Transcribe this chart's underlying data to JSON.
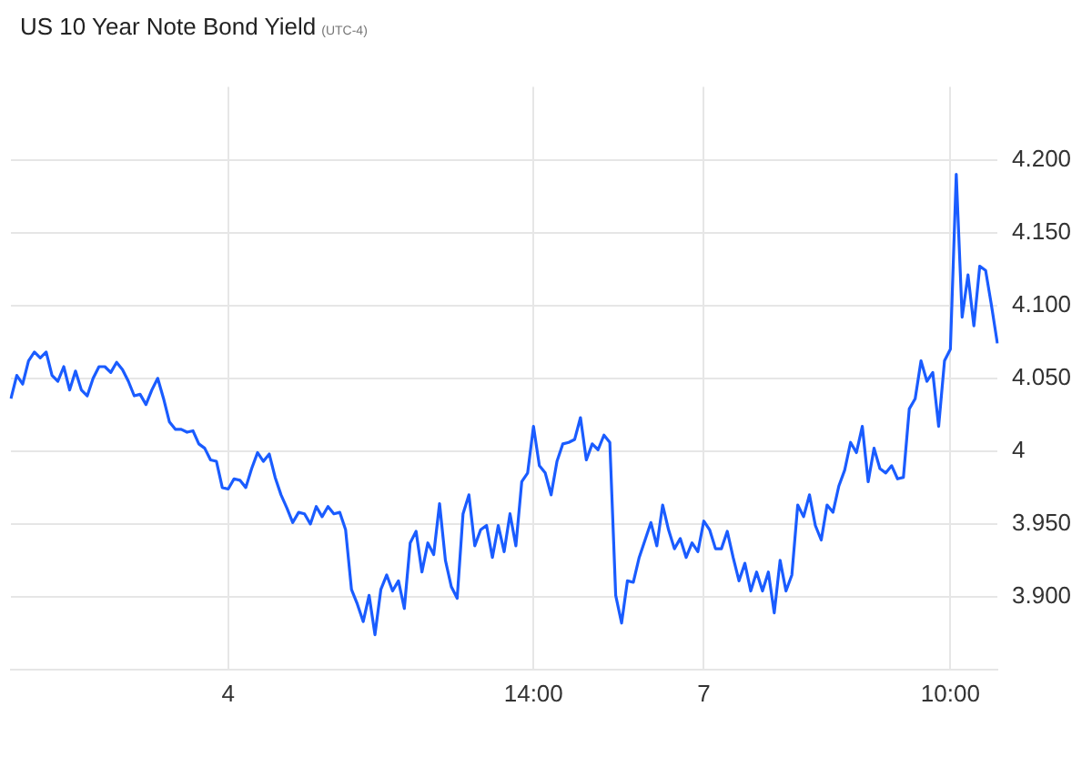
{
  "chart_data": {
    "type": "line",
    "title": "US 10 Year Note Bond Yield",
    "subtitle": "(UTC-4)",
    "categories": [
      null,
      null,
      null,
      null,
      null,
      null,
      null,
      null,
      null,
      null,
      null,
      null,
      null,
      null,
      null,
      null,
      null,
      null,
      null,
      null,
      null,
      null,
      null,
      null,
      null,
      null,
      null,
      null,
      null,
      null,
      null,
      null,
      null,
      null,
      null,
      null,
      null,
      "4",
      null,
      null,
      null,
      null,
      null,
      null,
      null,
      null,
      null,
      null,
      null,
      null,
      null,
      null,
      null,
      null,
      null,
      null,
      null,
      null,
      null,
      null,
      null,
      null,
      null,
      null,
      null,
      null,
      null,
      null,
      null,
      null,
      null,
      null,
      null,
      null,
      null,
      null,
      null,
      null,
      null,
      null,
      null,
      null,
      null,
      null,
      null,
      null,
      null,
      null,
      null,
      "14:00",
      null,
      null,
      null,
      null,
      null,
      null,
      null,
      null,
      null,
      null,
      null,
      null,
      null,
      null,
      null,
      null,
      null,
      null,
      null,
      null,
      null,
      null,
      null,
      null,
      null,
      null,
      null,
      null,
      "7",
      null,
      null,
      null,
      null,
      null,
      null,
      null,
      null,
      null,
      null,
      null,
      null,
      null,
      null,
      null,
      null,
      null,
      null,
      null,
      null,
      null,
      null,
      null,
      null,
      null,
      null,
      null,
      null,
      null,
      null,
      null,
      null,
      null,
      null,
      null,
      null,
      null,
      null,
      null,
      null,
      null,
      "10:00",
      null,
      null,
      null,
      null,
      null,
      null,
      null,
      null
    ],
    "values": [
      4.036,
      4.052,
      4.046,
      4.062,
      4.068,
      4.064,
      4.068,
      4.052,
      4.048,
      4.058,
      4.042,
      4.055,
      4.042,
      4.038,
      4.05,
      4.058,
      4.058,
      4.054,
      4.061,
      4.056,
      4.048,
      4.038,
      4.039,
      4.032,
      4.042,
      4.05,
      4.036,
      4.02,
      4.015,
      4.015,
      4.013,
      4.014,
      4.005,
      4.002,
      3.994,
      3.993,
      3.975,
      3.974,
      3.981,
      3.98,
      3.975,
      3.988,
      3.999,
      3.993,
      3.998,
      3.982,
      3.97,
      3.961,
      3.951,
      3.958,
      3.957,
      3.95,
      3.962,
      3.955,
      3.962,
      3.957,
      3.958,
      3.946,
      3.905,
      3.895,
      3.883,
      3.901,
      3.874,
      3.905,
      3.915,
      3.904,
      3.911,
      3.892,
      3.937,
      3.945,
      3.917,
      3.937,
      3.929,
      3.964,
      3.925,
      3.907,
      3.899,
      3.957,
      3.97,
      3.935,
      3.946,
      3.949,
      3.927,
      3.949,
      3.931,
      3.957,
      3.935,
      3.979,
      3.985,
      4.017,
      3.99,
      3.985,
      3.97,
      3.993,
      4.005,
      4.006,
      4.008,
      4.023,
      3.994,
      4.005,
      4.001,
      4.011,
      4.006,
      3.901,
      3.882,
      3.911,
      3.91,
      3.927,
      3.939,
      3.951,
      3.935,
      3.963,
      3.946,
      3.933,
      3.94,
      3.927,
      3.937,
      3.931,
      3.952,
      3.946,
      3.933,
      3.933,
      3.945,
      3.927,
      3.911,
      3.923,
      3.904,
      3.917,
      3.904,
      3.917,
      3.889,
      3.925,
      3.904,
      3.915,
      3.963,
      3.955,
      3.97,
      3.949,
      3.939,
      3.963,
      3.958,
      3.976,
      3.987,
      4.006,
      3.999,
      4.017,
      3.979,
      4.002,
      3.988,
      3.985,
      3.99,
      3.981,
      3.982,
      4.029,
      4.036,
      4.062,
      4.048,
      4.054,
      4.017,
      4.062,
      4.07,
      4.19,
      4.092,
      4.121,
      4.086,
      4.127,
      4.124,
      4.1,
      4.074
    ],
    "color": "#1a5cff",
    "marker": "none",
    "ylim": [
      3.85,
      4.25
    ],
    "yticks": [
      {
        "value": 3.9,
        "label": "3.900"
      },
      {
        "value": 3.95,
        "label": "3.950"
      },
      4,
      {
        "value": 4.05,
        "label": "4.050"
      },
      {
        "value": 4.1,
        "label": "4.100"
      },
      {
        "value": 4.15,
        "label": "4.150"
      },
      {
        "value": 4.2,
        "label": "4.200"
      }
    ],
    "grid": true
  }
}
